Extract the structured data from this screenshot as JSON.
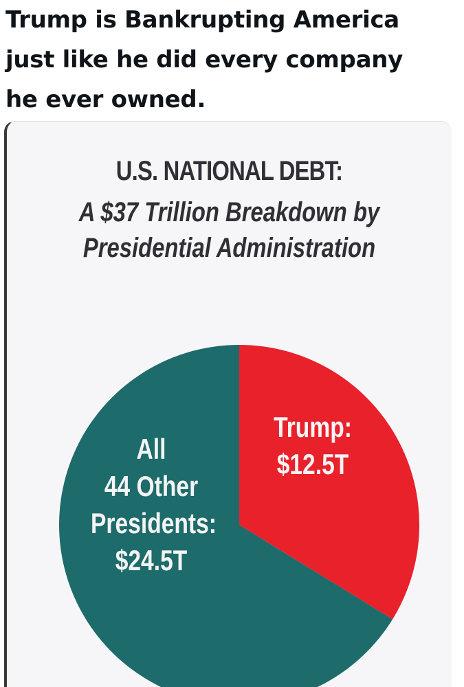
{
  "post": {
    "text_lines": [
      "Trump is Bankrupting America",
      "just like he did every company",
      "he ever owned."
    ]
  },
  "colors": {
    "trump": "#e8212b",
    "others": "#1e6b6b",
    "card_bg": "#f6f6f8"
  },
  "chart_data": {
    "type": "pie",
    "title": "U.S. NATIONAL DEBT:",
    "subtitle_lines": [
      "A $37 Trillion Breakdown by",
      "Presidential Administration"
    ],
    "slices": [
      {
        "name": "Trump",
        "value": 12.5,
        "label_lines": [
          "Trump:",
          "$12.5T"
        ],
        "color": "#e8212b"
      },
      {
        "name": "All 44 Other Presidents",
        "value": 24.5,
        "label_lines": [
          "All",
          "44 Other",
          "Presidents:",
          "$24.5T"
        ],
        "color": "#1e6b6b"
      }
    ],
    "legend": "none"
  }
}
